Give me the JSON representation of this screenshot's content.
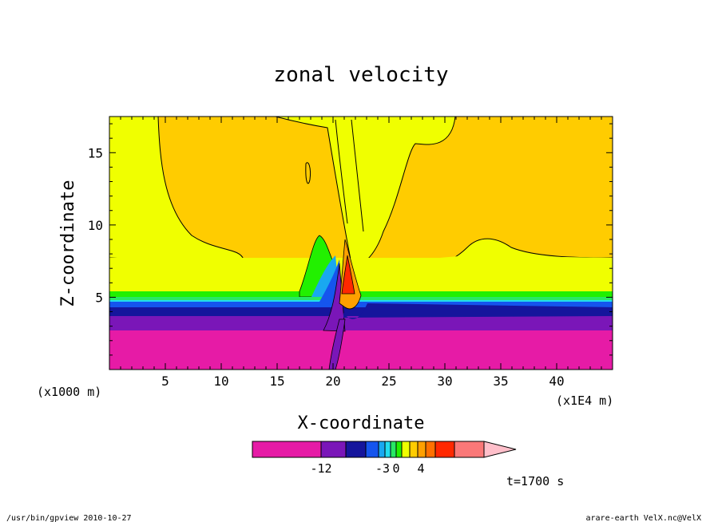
{
  "chart_data": {
    "type": "contour",
    "title": "zonal velocity",
    "xlabel": "X-coordinate",
    "ylabel": "Z-coordinate",
    "x_unit_left": "(x1000 m)",
    "x_unit_right": "(x1E4 m)",
    "xlim": [
      0,
      45
    ],
    "ylim": [
      0,
      17.5
    ],
    "x_ticks": [
      5,
      10,
      15,
      20,
      25,
      30,
      35,
      40
    ],
    "x_tick_labels": [
      "5",
      "10",
      "15",
      "20",
      "25",
      "30",
      "35",
      "40"
    ],
    "y_ticks": [
      5,
      10,
      15
    ],
    "y_tick_labels": [
      "5",
      "10",
      "15"
    ],
    "colorbar": {
      "levels": [
        -12,
        -3,
        0,
        4
      ],
      "level_labels": [
        "-12",
        "-3",
        "0",
        "4"
      ],
      "colors": [
        "#e61ba6",
        "#7a16b8",
        "#15159c",
        "#1555ee",
        "#19a8f0",
        "#22ddee",
        "#27e865",
        "#22f000",
        "#f0ff00",
        "#ffcc00",
        "#ffa000",
        "#ff7000",
        "#ff2800",
        "#fa7878",
        "#ffbfca"
      ]
    },
    "fields": {
      "background_color": "#ffcc00",
      "weak_color": "#f0ff00",
      "strong_negative_color": "#e61ba6"
    }
  },
  "footer": {
    "time_label": "t=1700 s",
    "left_info": "/usr/bin/gpview   2010-10-27",
    "right_info": "arare-earth_VelX.nc@VelX"
  }
}
